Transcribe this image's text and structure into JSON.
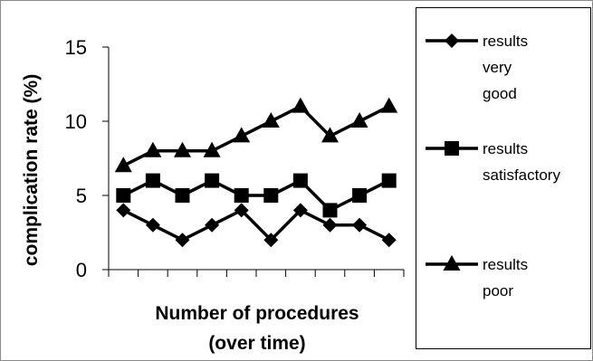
{
  "chart_data": {
    "type": "line",
    "ylabel": "complication rate (%)",
    "xlabel_lines": [
      "Number of procedures",
      "(over time)"
    ],
    "ylim": [
      0,
      15
    ],
    "yticks": [
      0,
      5,
      10,
      15
    ],
    "x": [
      1,
      2,
      3,
      4,
      5,
      6,
      7,
      8,
      9,
      10
    ],
    "grid": false,
    "legend_position": "right",
    "series": [
      {
        "name": "results very good",
        "legend_lines": [
          "results",
          "very",
          "good"
        ],
        "marker": "diamond",
        "values": [
          4,
          3,
          2,
          3,
          4,
          2,
          4,
          3,
          3,
          2
        ]
      },
      {
        "name": "results satisfactory",
        "legend_lines": [
          "results",
          "satisfactory"
        ],
        "marker": "square",
        "values": [
          5,
          6,
          5,
          6,
          5,
          5,
          6,
          4,
          5,
          6
        ]
      },
      {
        "name": "results poor",
        "legend_lines": [
          "results",
          "poor"
        ],
        "marker": "triangle",
        "values": [
          7,
          8,
          8,
          8,
          9,
          10,
          11,
          9,
          10,
          11
        ]
      }
    ]
  }
}
